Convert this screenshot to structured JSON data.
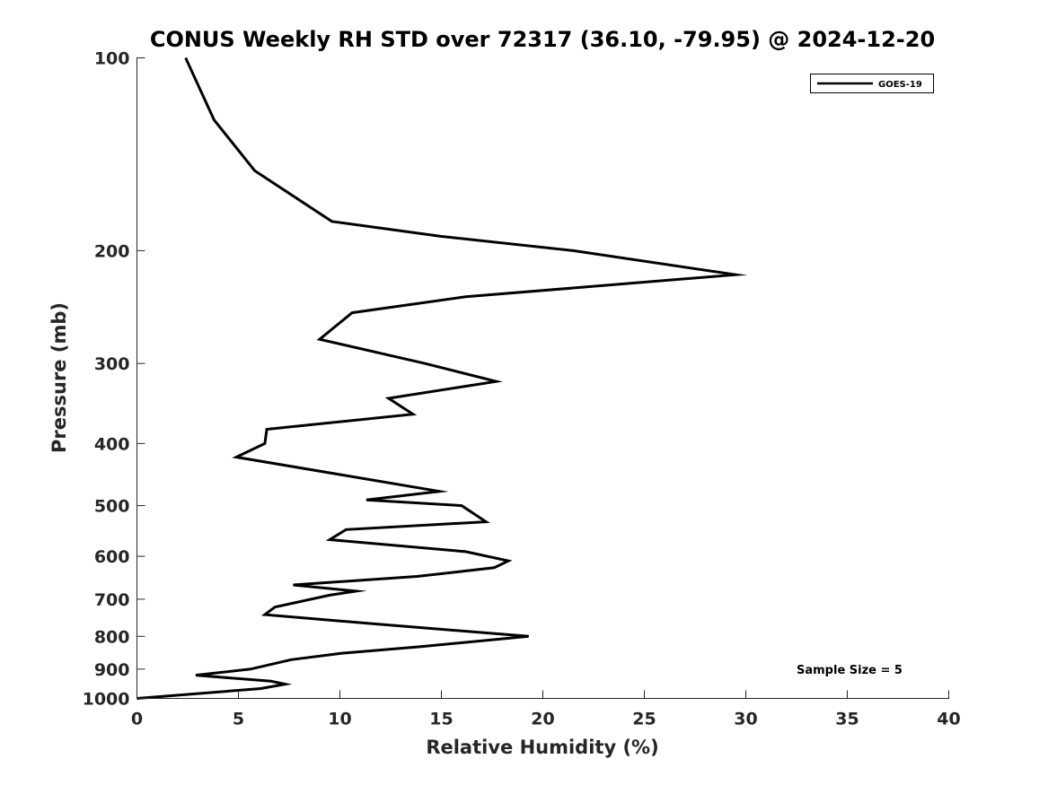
{
  "chart_data": {
    "type": "line",
    "title": "CONUS Weekly RH STD over 72317 (36.10, -79.95) @ 2024-12-20",
    "xlabel": "Relative Humidity (%)",
    "ylabel": "Pressure (mb)",
    "xlim": [
      0,
      40
    ],
    "ylim": [
      100,
      1000
    ],
    "yscale": "log",
    "y_reversed": true,
    "grid": false,
    "legend_position": "top-right",
    "x_ticks": [
      "0",
      "5",
      "10",
      "15",
      "20",
      "25",
      "30",
      "35",
      "40"
    ],
    "y_ticks": [
      "100",
      "200",
      "300",
      "400",
      "500",
      "600",
      "700",
      "800",
      "900",
      "1000"
    ],
    "annotation": "Sample Size = 5",
    "series": [
      {
        "name": "GOES-19",
        "color": "#000000",
        "points": [
          [
            2.4,
            100
          ],
          [
            3.8,
            125
          ],
          [
            5.8,
            150
          ],
          [
            9.6,
            180
          ],
          [
            15.0,
            190
          ],
          [
            21.5,
            200
          ],
          [
            29.5,
            218
          ],
          [
            16.2,
            236
          ],
          [
            10.6,
            250
          ],
          [
            9.0,
            275
          ],
          [
            14.2,
            300
          ],
          [
            17.7,
            320
          ],
          [
            12.4,
            340
          ],
          [
            13.6,
            360
          ],
          [
            6.4,
            380
          ],
          [
            6.3,
            400
          ],
          [
            4.9,
            420
          ],
          [
            10.5,
            450
          ],
          [
            14.9,
            475
          ],
          [
            11.3,
            490
          ],
          [
            16.0,
            500
          ],
          [
            17.2,
            530
          ],
          [
            10.3,
            545
          ],
          [
            9.5,
            565
          ],
          [
            16.2,
            590
          ],
          [
            18.3,
            610
          ],
          [
            17.6,
            625
          ],
          [
            13.8,
            645
          ],
          [
            7.7,
            665
          ],
          [
            10.8,
            680
          ],
          [
            9.5,
            690
          ],
          [
            6.8,
            720
          ],
          [
            6.3,
            740
          ],
          [
            11.7,
            765
          ],
          [
            19.3,
            800
          ],
          [
            14.0,
            830
          ],
          [
            10.1,
            850
          ],
          [
            7.6,
            870
          ],
          [
            5.6,
            900
          ],
          [
            2.9,
            920
          ],
          [
            6.6,
            940
          ],
          [
            7.3,
            950
          ],
          [
            6.1,
            965
          ],
          [
            0.0,
            1000
          ]
        ]
      }
    ]
  }
}
